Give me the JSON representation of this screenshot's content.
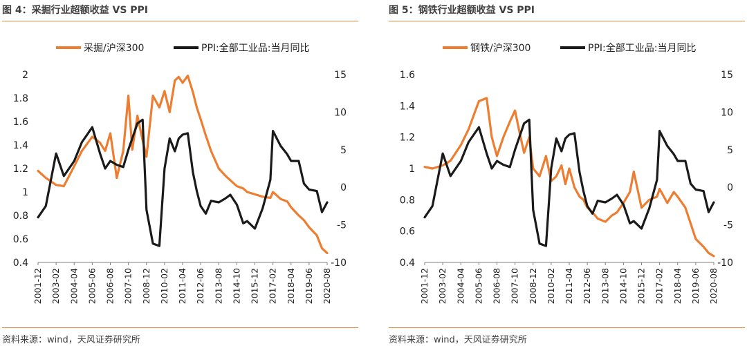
{
  "chart_data": [
    {
      "type": "line",
      "title": "图 4：采掘行业超额收益 VS PPI",
      "source": "资料来源：wind，天风证券研究所",
      "legend_position": "top",
      "x_tick_labels": [
        "2001-12",
        "2003-02",
        "2004-04",
        "2005-06",
        "2006-08",
        "2007-10",
        "2008-12",
        "2010-02",
        "2011-04",
        "2012-06",
        "2013-08",
        "2014-10",
        "2015-12",
        "2017-02",
        "2018-04",
        "2019-06",
        "2020-08"
      ],
      "x_range": [
        "2001-12",
        "2020-08"
      ],
      "y_left": {
        "min": 0.4,
        "max": 2,
        "ticks": [
          "0.4",
          "0.6",
          "0.8",
          "1",
          "1.2",
          "1.4",
          "1.6",
          "1.8",
          "2"
        ]
      },
      "y_right": {
        "min": -10,
        "max": 15,
        "ticks": [
          "-10",
          "-5",
          "0",
          "5",
          "10",
          "15"
        ]
      },
      "grid": false,
      "series": [
        {
          "name": "采掘/沪深300",
          "axis": "left",
          "color": "#ed7d31",
          "x": [
            "2001-12",
            "2002-06",
            "2003-02",
            "2003-08",
            "2004-04",
            "2004-10",
            "2005-06",
            "2005-12",
            "2006-04",
            "2006-08",
            "2007-01",
            "2007-06",
            "2007-10",
            "2008-01",
            "2008-05",
            "2008-09",
            "2008-12",
            "2009-05",
            "2009-10",
            "2010-02",
            "2010-06",
            "2010-10",
            "2011-01",
            "2011-04",
            "2011-08",
            "2011-12",
            "2012-03",
            "2012-06",
            "2012-10",
            "2013-02",
            "2013-08",
            "2014-01",
            "2014-05",
            "2014-10",
            "2015-03",
            "2015-06",
            "2015-12",
            "2016-06",
            "2016-12",
            "2017-02",
            "2017-08",
            "2018-01",
            "2018-04",
            "2018-10",
            "2019-02",
            "2019-06",
            "2019-12",
            "2020-04",
            "2020-08"
          ],
          "y": [
            1.18,
            1.12,
            1.06,
            1.05,
            1.22,
            1.35,
            1.47,
            1.42,
            1.35,
            1.5,
            1.12,
            1.35,
            1.82,
            1.36,
            1.65,
            1.44,
            1.3,
            1.82,
            1.72,
            1.86,
            1.68,
            1.95,
            1.98,
            1.93,
            1.99,
            1.85,
            1.72,
            1.62,
            1.48,
            1.35,
            1.2,
            1.14,
            1.1,
            1.05,
            1.03,
            1.0,
            0.98,
            0.96,
            0.95,
            1.0,
            0.94,
            0.92,
            0.87,
            0.8,
            0.76,
            0.7,
            0.63,
            0.52,
            0.48
          ]
        },
        {
          "name": "PPI:全部工业品:当月同比",
          "axis": "right",
          "color": "#1a1a1a",
          "x": [
            "2001-12",
            "2002-06",
            "2003-02",
            "2003-08",
            "2004-04",
            "2004-10",
            "2005-06",
            "2005-12",
            "2006-04",
            "2006-08",
            "2007-01",
            "2007-06",
            "2007-10",
            "2008-01",
            "2008-05",
            "2008-09",
            "2008-12",
            "2009-05",
            "2009-10",
            "2010-02",
            "2010-06",
            "2010-10",
            "2011-01",
            "2011-04",
            "2011-08",
            "2011-12",
            "2012-03",
            "2012-06",
            "2012-10",
            "2013-02",
            "2013-08",
            "2014-01",
            "2014-05",
            "2014-10",
            "2015-03",
            "2015-06",
            "2015-12",
            "2016-06",
            "2016-12",
            "2017-02",
            "2017-08",
            "2018-01",
            "2018-04",
            "2018-10",
            "2019-02",
            "2019-06",
            "2019-12",
            "2020-04",
            "2020-08"
          ],
          "y": [
            -4.0,
            -2.5,
            4.5,
            1.5,
            3.5,
            6.0,
            8.0,
            4.5,
            2.5,
            3.5,
            3.0,
            2.7,
            5.0,
            6.5,
            8.5,
            9.0,
            -3.0,
            -7.5,
            -7.8,
            2.5,
            6.5,
            4.8,
            6.5,
            7.0,
            7.2,
            2.0,
            -0.5,
            -2.5,
            -3.5,
            -1.8,
            -2.0,
            -1.5,
            -1.0,
            -2.3,
            -4.8,
            -4.5,
            -5.5,
            -2.8,
            1.0,
            7.5,
            5.5,
            4.4,
            3.5,
            3.5,
            0.5,
            -0.3,
            -0.5,
            -3.3,
            -2.0
          ]
        }
      ]
    },
    {
      "type": "line",
      "title": "图 5：钢铁行业超额收益 VS PPI",
      "source": "资料来源：wind，天风证券研究所",
      "legend_position": "top",
      "x_tick_labels": [
        "2001-12",
        "2003-02",
        "2004-04",
        "2005-06",
        "2006-08",
        "2007-10",
        "2008-12",
        "2010-02",
        "2011-04",
        "2012-06",
        "2013-08",
        "2014-10",
        "2015-12",
        "2017-02",
        "2018-04",
        "2019-06",
        "2020-08"
      ],
      "x_range": [
        "2001-12",
        "2020-08"
      ],
      "y_left": {
        "min": 0.4,
        "max": 1.6,
        "ticks": [
          "0.4",
          "0.6",
          "0.8",
          "1",
          "1.2",
          "1.4",
          "1.6"
        ]
      },
      "y_right": {
        "min": -10,
        "max": 15,
        "ticks": [
          "-10",
          "-5",
          "0",
          "5",
          "10",
          "15"
        ]
      },
      "grid": false,
      "series": [
        {
          "name": "钢铁/沪深300",
          "axis": "left",
          "color": "#ed7d31",
          "x": [
            "2001-12",
            "2002-06",
            "2003-02",
            "2003-08",
            "2004-04",
            "2004-10",
            "2005-06",
            "2005-12",
            "2006-04",
            "2006-08",
            "2007-01",
            "2007-06",
            "2007-10",
            "2008-01",
            "2008-05",
            "2008-09",
            "2008-12",
            "2009-05",
            "2009-10",
            "2010-02",
            "2010-06",
            "2010-10",
            "2011-01",
            "2011-04",
            "2011-08",
            "2011-12",
            "2012-03",
            "2012-06",
            "2012-10",
            "2013-02",
            "2013-08",
            "2014-01",
            "2014-05",
            "2014-10",
            "2015-03",
            "2015-06",
            "2015-12",
            "2016-06",
            "2016-12",
            "2017-02",
            "2017-08",
            "2018-01",
            "2018-04",
            "2018-10",
            "2019-02",
            "2019-06",
            "2019-12",
            "2020-04",
            "2020-08"
          ],
          "y": [
            1.01,
            1.0,
            1.02,
            1.05,
            1.15,
            1.25,
            1.43,
            1.45,
            1.2,
            1.08,
            1.2,
            1.3,
            1.37,
            1.25,
            1.1,
            1.2,
            1.0,
            0.95,
            1.08,
            0.92,
            0.95,
            1.02,
            0.9,
            1.0,
            0.88,
            0.82,
            0.8,
            0.75,
            0.72,
            0.68,
            0.66,
            0.7,
            0.72,
            0.78,
            0.85,
            0.98,
            0.75,
            0.8,
            0.82,
            0.87,
            0.78,
            0.85,
            0.82,
            0.75,
            0.65,
            0.55,
            0.5,
            0.46,
            0.44
          ]
        },
        {
          "name": "PPI:全部工业品:当月同比",
          "axis": "right",
          "color": "#1a1a1a",
          "x": [
            "2001-12",
            "2002-06",
            "2003-02",
            "2003-08",
            "2004-04",
            "2004-10",
            "2005-06",
            "2005-12",
            "2006-04",
            "2006-08",
            "2007-01",
            "2007-06",
            "2007-10",
            "2008-01",
            "2008-05",
            "2008-09",
            "2008-12",
            "2009-05",
            "2009-10",
            "2010-02",
            "2010-06",
            "2010-10",
            "2011-01",
            "2011-04",
            "2011-08",
            "2011-12",
            "2012-03",
            "2012-06",
            "2012-10",
            "2013-02",
            "2013-08",
            "2014-01",
            "2014-05",
            "2014-10",
            "2015-03",
            "2015-06",
            "2015-12",
            "2016-06",
            "2016-12",
            "2017-02",
            "2017-08",
            "2018-01",
            "2018-04",
            "2018-10",
            "2019-02",
            "2019-06",
            "2019-12",
            "2020-04",
            "2020-08"
          ],
          "y": [
            -4.0,
            -2.5,
            4.5,
            1.5,
            3.5,
            6.0,
            8.0,
            4.5,
            2.5,
            3.5,
            3.0,
            2.7,
            5.0,
            6.5,
            8.5,
            9.0,
            -3.0,
            -7.5,
            -7.8,
            2.5,
            6.5,
            4.8,
            6.5,
            7.0,
            7.2,
            2.0,
            -0.5,
            -2.5,
            -3.5,
            -1.8,
            -2.0,
            -1.5,
            -1.0,
            -2.3,
            -4.8,
            -4.5,
            -5.5,
            -2.8,
            1.0,
            7.5,
            5.5,
            4.4,
            3.5,
            3.5,
            0.5,
            -0.3,
            -0.5,
            -3.3,
            -2.0
          ]
        }
      ]
    }
  ]
}
